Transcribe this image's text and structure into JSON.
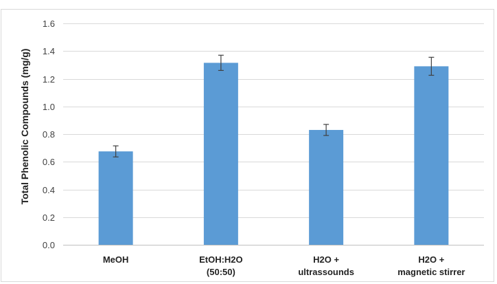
{
  "chart_data": {
    "type": "bar",
    "title": "",
    "xlabel": "",
    "ylabel": "Total Phenolic Compounds (mg/g)",
    "categories": [
      [
        "MeOH"
      ],
      [
        "EtOH:H2O",
        "(50:50)"
      ],
      [
        "H2O +",
        "ultrassounds"
      ],
      [
        "H2O +",
        "magnetic stirrer"
      ]
    ],
    "values": [
      0.675,
      1.315,
      0.83,
      1.29
    ],
    "error": [
      0.04,
      0.055,
      0.04,
      0.065
    ],
    "ylim": [
      0,
      1.6
    ],
    "yticks": [
      "0.0",
      "0.2",
      "0.4",
      "0.6",
      "0.8",
      "1.0",
      "1.2",
      "1.4",
      "1.6"
    ],
    "grid": true,
    "legend": "none",
    "colors": {
      "bar": "#5b9bd5",
      "grid": "#d9d9d9",
      "frame": "#d9d9d9",
      "error": "#404040"
    }
  }
}
